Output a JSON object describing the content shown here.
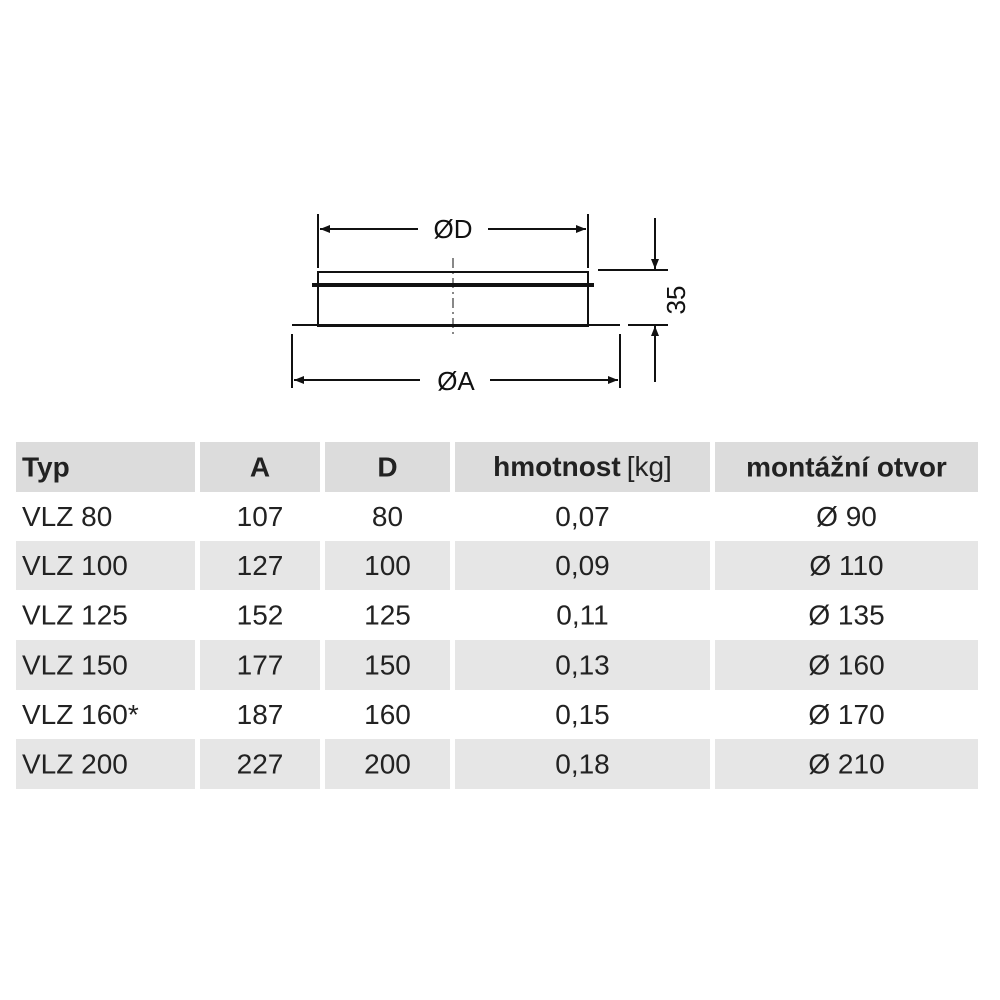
{
  "diagram": {
    "label_d": "ØD",
    "label_a": "ØA",
    "label_height": "35"
  },
  "table": {
    "header": [
      "Typ",
      "A",
      "D",
      {
        "label": "hmotnost",
        "unit": "[kg]"
      },
      "montážní otvor"
    ],
    "rows": [
      [
        "VLZ 80",
        "107",
        "80",
        "0,07",
        "Ø 90"
      ],
      [
        "VLZ 100",
        "127",
        "100",
        "0,09",
        "Ø 110"
      ],
      [
        "VLZ 125",
        "152",
        "125",
        "0,11",
        "Ø 135"
      ],
      [
        "VLZ 150",
        "177",
        "150",
        "0,13",
        "Ø 160"
      ],
      [
        "VLZ 160*",
        "187",
        "160",
        "0,15",
        "Ø 170"
      ],
      [
        "VLZ 200",
        "227",
        "200",
        "0,18",
        "Ø 210"
      ]
    ]
  }
}
